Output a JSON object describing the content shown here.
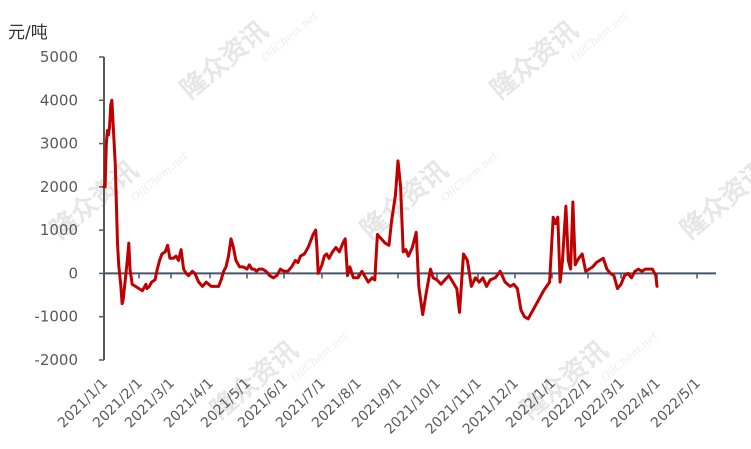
{
  "chart_data": {
    "type": "line",
    "unit_label": "元/吨",
    "ylim": [
      -2000,
      5000
    ],
    "y_ticks": [
      -2000,
      -1000,
      0,
      1000,
      2000,
      3000,
      4000,
      5000
    ],
    "x_tick_labels": [
      "2021/1/1",
      "2021/2/1",
      "2021/3/1",
      "2021/4/1",
      "2021/5/1",
      "2021/6/1",
      "2021/7/1",
      "2021/8/1",
      "2021/9/1",
      "2021/10/1",
      "2021/11/1",
      "2021/12/1",
      "2022/1/1",
      "2022/2/1",
      "2022/3/1",
      "2022/4/1",
      "2022/5/1"
    ],
    "grid": false,
    "legend": "none",
    "color": "#c00000",
    "watermarks": [
      "隆众资讯",
      "OilChem.net"
    ],
    "series": [
      {
        "values": [
          [
            "2021-01-01",
            2000
          ],
          [
            "2021-01-02",
            2000
          ],
          [
            "2021-01-03",
            3000
          ],
          [
            "2021-01-04",
            3300
          ],
          [
            "2021-01-05",
            3200
          ],
          [
            "2021-01-06",
            3400
          ],
          [
            "2021-01-07",
            3900
          ],
          [
            "2021-01-08",
            4000
          ],
          [
            "2021-01-09",
            3500
          ],
          [
            "2021-01-11",
            2500
          ],
          [
            "2021-01-13",
            700
          ],
          [
            "2021-01-14",
            200
          ],
          [
            "2021-01-16",
            -300
          ],
          [
            "2021-01-17",
            -700
          ],
          [
            "2021-01-18",
            -600
          ],
          [
            "2021-01-20",
            -100
          ],
          [
            "2021-01-22",
            400
          ],
          [
            "2021-01-23",
            700
          ],
          [
            "2021-01-24",
            100
          ],
          [
            "2021-01-26",
            -250
          ],
          [
            "2021-01-29",
            -300
          ],
          [
            "2021-02-01",
            -350
          ],
          [
            "2021-02-04",
            -400
          ],
          [
            "2021-02-07",
            -250
          ],
          [
            "2021-02-08",
            -350
          ],
          [
            "2021-02-10",
            -300
          ],
          [
            "2021-02-12",
            -200
          ],
          [
            "2021-02-15",
            -150
          ],
          [
            "2021-02-17",
            100
          ],
          [
            "2021-02-19",
            300
          ],
          [
            "2021-02-21",
            450
          ],
          [
            "2021-02-24",
            500
          ],
          [
            "2021-02-26",
            650
          ],
          [
            "2021-02-28",
            350
          ],
          [
            "2021-03-03",
            350
          ],
          [
            "2021-03-05",
            400
          ],
          [
            "2021-03-07",
            300
          ],
          [
            "2021-03-09",
            550
          ],
          [
            "2021-03-11",
            100
          ],
          [
            "2021-03-13",
            0
          ],
          [
            "2021-03-15",
            -50
          ],
          [
            "2021-03-18",
            50
          ],
          [
            "2021-03-20",
            0
          ],
          [
            "2021-03-23",
            -200
          ],
          [
            "2021-03-26",
            -300
          ],
          [
            "2021-03-29",
            -200
          ],
          [
            "2021-04-02",
            -300
          ],
          [
            "2021-04-05",
            -300
          ],
          [
            "2021-04-08",
            -300
          ],
          [
            "2021-04-10",
            -150
          ],
          [
            "2021-04-12",
            50
          ],
          [
            "2021-04-14",
            150
          ],
          [
            "2021-04-16",
            400
          ],
          [
            "2021-04-18",
            800
          ],
          [
            "2021-04-20",
            600
          ],
          [
            "2021-04-22",
            300
          ],
          [
            "2021-04-25",
            150
          ],
          [
            "2021-04-28",
            150
          ],
          [
            "2021-05-01",
            100
          ],
          [
            "2021-05-03",
            200
          ],
          [
            "2021-05-05",
            100
          ],
          [
            "2021-05-07",
            100
          ],
          [
            "2021-05-09",
            50
          ],
          [
            "2021-05-11",
            100
          ],
          [
            "2021-05-14",
            100
          ],
          [
            "2021-05-17",
            50
          ],
          [
            "2021-05-20",
            -50
          ],
          [
            "2021-05-23",
            -100
          ],
          [
            "2021-05-26",
            -50
          ],
          [
            "2021-05-29",
            100
          ],
          [
            "2021-06-01",
            50
          ],
          [
            "2021-06-04",
            50
          ],
          [
            "2021-06-07",
            150
          ],
          [
            "2021-06-10",
            300
          ],
          [
            "2021-06-12",
            250
          ],
          [
            "2021-06-14",
            400
          ],
          [
            "2021-06-17",
            450
          ],
          [
            "2021-06-20",
            600
          ],
          [
            "2021-06-22",
            750
          ],
          [
            "2021-06-24",
            900
          ],
          [
            "2021-06-26",
            1000
          ],
          [
            "2021-06-27",
            600
          ],
          [
            "2021-06-28",
            0
          ],
          [
            "2021-07-01",
            200
          ],
          [
            "2021-07-03",
            400
          ],
          [
            "2021-07-05",
            450
          ],
          [
            "2021-07-07",
            350
          ],
          [
            "2021-07-10",
            500
          ],
          [
            "2021-07-13",
            600
          ],
          [
            "2021-07-16",
            500
          ],
          [
            "2021-07-19",
            700
          ],
          [
            "2021-07-21",
            800
          ],
          [
            "2021-07-23",
            -50
          ],
          [
            "2021-07-25",
            150
          ],
          [
            "2021-07-28",
            -100
          ],
          [
            "2021-08-01",
            -100
          ],
          [
            "2021-08-04",
            50
          ],
          [
            "2021-08-06",
            -50
          ],
          [
            "2021-08-09",
            -200
          ],
          [
            "2021-08-12",
            -100
          ],
          [
            "2021-08-14",
            -150
          ],
          [
            "2021-08-16",
            900
          ],
          [
            "2021-08-19",
            800
          ],
          [
            "2021-08-22",
            700
          ],
          [
            "2021-08-25",
            650
          ],
          [
            "2021-08-27",
            1200
          ],
          [
            "2021-08-30",
            1800
          ],
          [
            "2021-09-01",
            2600
          ],
          [
            "2021-09-03",
            2000
          ],
          [
            "2021-09-05",
            500
          ],
          [
            "2021-09-07",
            550
          ],
          [
            "2021-09-09",
            400
          ],
          [
            "2021-09-12",
            600
          ],
          [
            "2021-09-15",
            950
          ],
          [
            "2021-09-17",
            -300
          ],
          [
            "2021-09-20",
            -950
          ],
          [
            "2021-09-23",
            -400
          ],
          [
            "2021-09-26",
            100
          ],
          [
            "2021-09-28",
            -100
          ],
          [
            "2021-10-01",
            -150
          ],
          [
            "2021-10-04",
            -250
          ],
          [
            "2021-10-07",
            -150
          ],
          [
            "2021-10-10",
            -50
          ],
          [
            "2021-10-13",
            -200
          ],
          [
            "2021-10-16",
            -350
          ],
          [
            "2021-10-18",
            -900
          ],
          [
            "2021-10-21",
            450
          ],
          [
            "2021-10-24",
            300
          ],
          [
            "2021-10-27",
            -300
          ],
          [
            "2021-10-30",
            -100
          ],
          [
            "2021-11-02",
            -200
          ],
          [
            "2021-11-05",
            -100
          ],
          [
            "2021-11-08",
            -300
          ],
          [
            "2021-11-11",
            -150
          ],
          [
            "2021-11-15",
            -100
          ],
          [
            "2021-11-19",
            50
          ],
          [
            "2021-11-23",
            -200
          ],
          [
            "2021-11-27",
            -300
          ],
          [
            "2021-11-30",
            -250
          ],
          [
            "2021-12-03",
            -350
          ],
          [
            "2021-12-06",
            -850
          ],
          [
            "2021-12-09",
            -1000
          ],
          [
            "2021-12-12",
            -1050
          ],
          [
            "2021-12-15",
            -900
          ],
          [
            "2021-12-20",
            -650
          ],
          [
            "2021-12-25",
            -400
          ],
          [
            "2021-12-30",
            -200
          ],
          [
            "2022-01-02",
            1300
          ],
          [
            "2022-01-04",
            1150
          ],
          [
            "2022-01-06",
            1300
          ],
          [
            "2022-01-08",
            -200
          ],
          [
            "2022-01-10",
            300
          ],
          [
            "2022-01-13",
            1550
          ],
          [
            "2022-01-15",
            300
          ],
          [
            "2022-01-17",
            100
          ],
          [
            "2022-01-19",
            1650
          ],
          [
            "2022-01-21",
            200
          ],
          [
            "2022-01-24",
            350
          ],
          [
            "2022-01-27",
            450
          ],
          [
            "2022-01-30",
            50
          ],
          [
            "2022-02-02",
            100
          ],
          [
            "2022-02-05",
            150
          ],
          [
            "2022-02-08",
            250
          ],
          [
            "2022-02-11",
            300
          ],
          [
            "2022-02-14",
            350
          ],
          [
            "2022-02-17",
            100
          ],
          [
            "2022-02-20",
            0
          ],
          [
            "2022-02-23",
            -50
          ],
          [
            "2022-02-26",
            -350
          ],
          [
            "2022-03-01",
            -250
          ],
          [
            "2022-03-04",
            -50
          ],
          [
            "2022-03-07",
            0
          ],
          [
            "2022-03-10",
            -100
          ],
          [
            "2022-03-13",
            50
          ],
          [
            "2022-03-16",
            100
          ],
          [
            "2022-03-19",
            50
          ],
          [
            "2022-03-22",
            100
          ],
          [
            "2022-03-25",
            100
          ],
          [
            "2022-03-28",
            100
          ],
          [
            "2022-03-31",
            -50
          ],
          [
            "2022-04-01",
            -300
          ]
        ]
      }
    ]
  }
}
